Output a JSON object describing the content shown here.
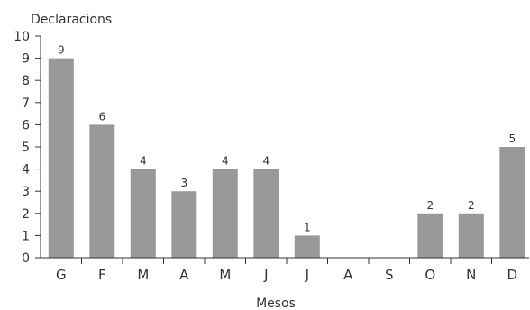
{
  "chart_data": {
    "type": "bar",
    "title": "",
    "ylabel": "Declaracions",
    "xlabel": "Mesos",
    "categories": [
      "G",
      "F",
      "M",
      "A",
      "M",
      "J",
      "J",
      "A",
      "S",
      "O",
      "N",
      "D"
    ],
    "values": [
      9,
      6,
      4,
      3,
      4,
      4,
      1,
      0,
      0,
      2,
      2,
      5
    ],
    "data_labels": [
      "9",
      "6",
      "4",
      "3",
      "4",
      "4",
      "1",
      "",
      "",
      "2",
      "2",
      "5"
    ],
    "yticks": [
      "0",
      "1",
      "2",
      "3",
      "4",
      "5",
      "6",
      "7",
      "8",
      "9",
      "10"
    ],
    "ylim": [
      0,
      10
    ],
    "grid": false,
    "legend": "none",
    "colors": {
      "bar": "#999999",
      "axis": "#333333",
      "text": "#333333"
    }
  }
}
